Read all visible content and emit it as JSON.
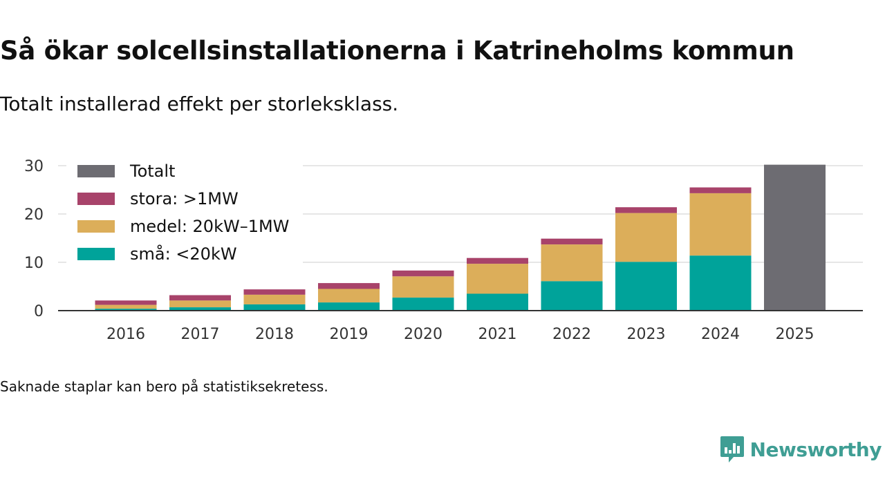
{
  "header": {
    "title": "Så ökar solcellsinstallationerna i Katrineholms kommun",
    "subtitle": "Totalt installerad effekt per storleksklass."
  },
  "footer": {
    "note": "Saknade staplar kan bero på statistiksekretess.",
    "brand": "Newsworthy"
  },
  "colors": {
    "totalt": "#6d6c72",
    "stora": "#a8436a",
    "medel": "#dcae5a",
    "sma": "#00a39a",
    "brand": "#3f9e94",
    "grid": "#dddddd",
    "axis": "#333333"
  },
  "chart_data": {
    "type": "bar",
    "stacked": true,
    "title": "Så ökar solcellsinstallationerna i Katrineholms kommun",
    "subtitle": "Totalt installerad effekt per storleksklass.",
    "xlabel": "",
    "ylabel": "",
    "ylim": [
      0,
      30
    ],
    "yticks": [
      0,
      10,
      20,
      30
    ],
    "grid": true,
    "legend_position": "top-left",
    "categories": [
      "2016",
      "2017",
      "2018",
      "2019",
      "2020",
      "2021",
      "2022",
      "2023",
      "2024",
      "2025"
    ],
    "series": [
      {
        "key": "sma",
        "name": "små: <20kW",
        "values": [
          0.4,
          0.7,
          1.3,
          1.7,
          2.7,
          3.5,
          6.1,
          10.1,
          11.4,
          null
        ]
      },
      {
        "key": "medel",
        "name": "medel: 20kW–1MW",
        "values": [
          0.8,
          1.4,
          2.0,
          2.8,
          4.4,
          6.2,
          7.6,
          10.1,
          12.9,
          null
        ]
      },
      {
        "key": "stora",
        "name": "stora: >1MW",
        "values": [
          0.9,
          1.1,
          1.1,
          1.2,
          1.2,
          1.2,
          1.2,
          1.2,
          1.2,
          null
        ]
      },
      {
        "key": "totalt",
        "name": "Totalt",
        "values": [
          null,
          null,
          null,
          null,
          null,
          null,
          null,
          null,
          null,
          30.2
        ]
      }
    ],
    "legend_order": [
      "totalt",
      "stora",
      "medel",
      "sma"
    ]
  }
}
